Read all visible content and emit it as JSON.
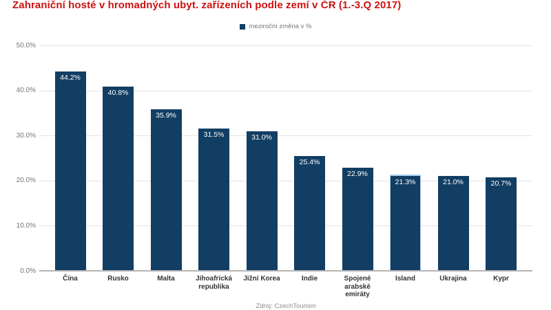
{
  "header": {
    "title": "Zahraniční hosté v hromadných ubyt. zařízeních podle zemí v ČR (1.-3.Q 2017)",
    "title_color": "#cc1111"
  },
  "legend": {
    "label": "meziroční změna v %",
    "marker_color": "#123e64"
  },
  "source": "Zdroj: CzechTourism",
  "chart_data": {
    "type": "bar",
    "title": "Zahraniční hosté v hromadných ubyt. zařízeních podle zemí v ČR (1.-3.Q 2017)",
    "legend_entries": [
      "meziroční změna v %"
    ],
    "legend_position": "top",
    "categories": [
      "Čína",
      "Rusko",
      "Malta",
      "Jihoafrická republika",
      "Jižní Korea",
      "Indie",
      "Spojené arabské emiráty",
      "Island",
      "Ukrajina",
      "Kypr"
    ],
    "values": [
      44.2,
      40.8,
      35.9,
      31.5,
      31.0,
      25.4,
      22.9,
      21.3,
      21.0,
      20.7
    ],
    "value_labels": [
      "44.2%",
      "40.8%",
      "35.9%",
      "31.5%",
      "31.0%",
      "25.4%",
      "22.9%",
      "21.3%",
      "21.0%",
      "20.7%"
    ],
    "xlabel": "",
    "ylabel": "",
    "y_ticks": [
      {
        "label": "50.0%",
        "value": 50
      },
      {
        "label": "40.0%",
        "value": 40
      },
      {
        "label": "30.0%",
        "value": 30
      },
      {
        "label": "20.0%",
        "value": 20
      },
      {
        "label": "10.0%",
        "value": 10
      },
      {
        "label": "0.0%",
        "value": 0
      }
    ],
    "ylim": [
      0,
      50
    ],
    "grid": true,
    "bar_color": "#123e64",
    "highlighted_bar_index": 7,
    "highlight_color": "#a9cde8",
    "source": "Zdroj: CzechTourism"
  }
}
